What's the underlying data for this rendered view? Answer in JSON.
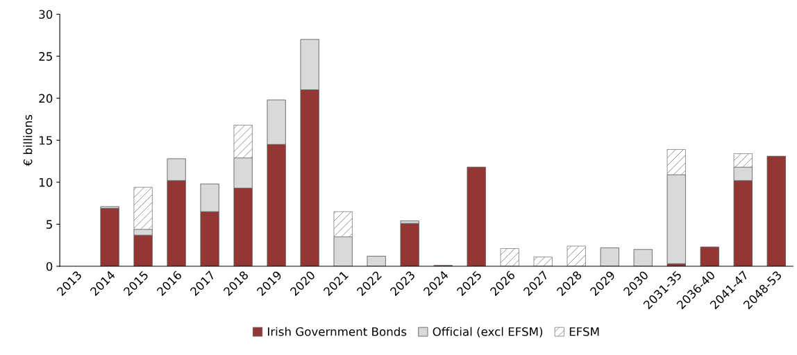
{
  "chart_data": {
    "type": "bar",
    "stacked": true,
    "ylabel": "€ billions",
    "categories": [
      "2013",
      "2014",
      "2015",
      "2016",
      "2017",
      "2018",
      "2019",
      "2020",
      "2021",
      "2022",
      "2023",
      "2024",
      "2025",
      "2026",
      "2027",
      "2028",
      "2029",
      "2030",
      "2031-35",
      "2036-40",
      "2041-47",
      "2048-53"
    ],
    "series": [
      {
        "name": "Irish Government Bonds",
        "color": "#943634",
        "values": [
          null,
          6.9,
          3.7,
          10.2,
          6.5,
          9.3,
          14.5,
          21.0,
          null,
          null,
          5.1,
          0.1,
          11.8,
          null,
          null,
          null,
          null,
          null,
          0.3,
          2.3,
          10.2,
          13.1
        ]
      },
      {
        "name": "Official (excl EFSM)",
        "color": "#d9d9d9",
        "values": [
          null,
          0.2,
          0.7,
          2.6,
          3.3,
          3.6,
          5.3,
          6.0,
          3.5,
          1.2,
          0.3,
          null,
          null,
          null,
          null,
          null,
          2.2,
          2.0,
          10.6,
          null,
          1.6,
          null
        ]
      },
      {
        "name": "EFSM",
        "color": "#7f7f7f",
        "values": [
          null,
          null,
          5.0,
          null,
          null,
          3.9,
          null,
          null,
          3.0,
          null,
          null,
          null,
          null,
          2.1,
          1.1,
          2.4,
          null,
          null,
          3.0,
          null,
          1.6,
          null
        ]
      }
    ],
    "ylim": [
      0,
      30
    ],
    "yticks": [
      0,
      5,
      10,
      15,
      20,
      25,
      30
    ],
    "grid": false,
    "legend": "bottom"
  }
}
